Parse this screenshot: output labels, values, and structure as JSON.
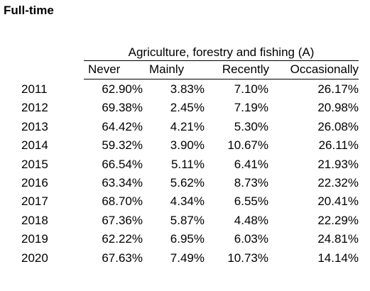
{
  "title": "Full-time",
  "table": {
    "group_header": "Agriculture, forestry and fishing (A)",
    "columns": [
      "Never",
      "Mainly",
      "Recently",
      "Occasionally"
    ],
    "rows": [
      {
        "year": "2011",
        "values": [
          "62.90%",
          "3.83%",
          "7.10%",
          "26.17%"
        ]
      },
      {
        "year": "2012",
        "values": [
          "69.38%",
          "2.45%",
          "7.19%",
          "20.98%"
        ]
      },
      {
        "year": "2013",
        "values": [
          "64.42%",
          "4.21%",
          "5.30%",
          "26.08%"
        ]
      },
      {
        "year": "2014",
        "values": [
          "59.32%",
          "3.90%",
          "10.67%",
          "26.11%"
        ]
      },
      {
        "year": "2015",
        "values": [
          "66.54%",
          "5.11%",
          "6.41%",
          "21.93%"
        ]
      },
      {
        "year": "2016",
        "values": [
          "63.34%",
          "5.62%",
          "8.73%",
          "22.32%"
        ]
      },
      {
        "year": "2017",
        "values": [
          "68.70%",
          "4.34%",
          "6.55%",
          "20.41%"
        ]
      },
      {
        "year": "2018",
        "values": [
          "67.36%",
          "5.87%",
          "4.48%",
          "22.29%"
        ]
      },
      {
        "year": "2019",
        "values": [
          "62.22%",
          "6.95%",
          "6.03%",
          "24.81%"
        ]
      },
      {
        "year": "2020",
        "values": [
          "67.63%",
          "7.49%",
          "10.73%",
          "14.14%"
        ]
      }
    ]
  }
}
